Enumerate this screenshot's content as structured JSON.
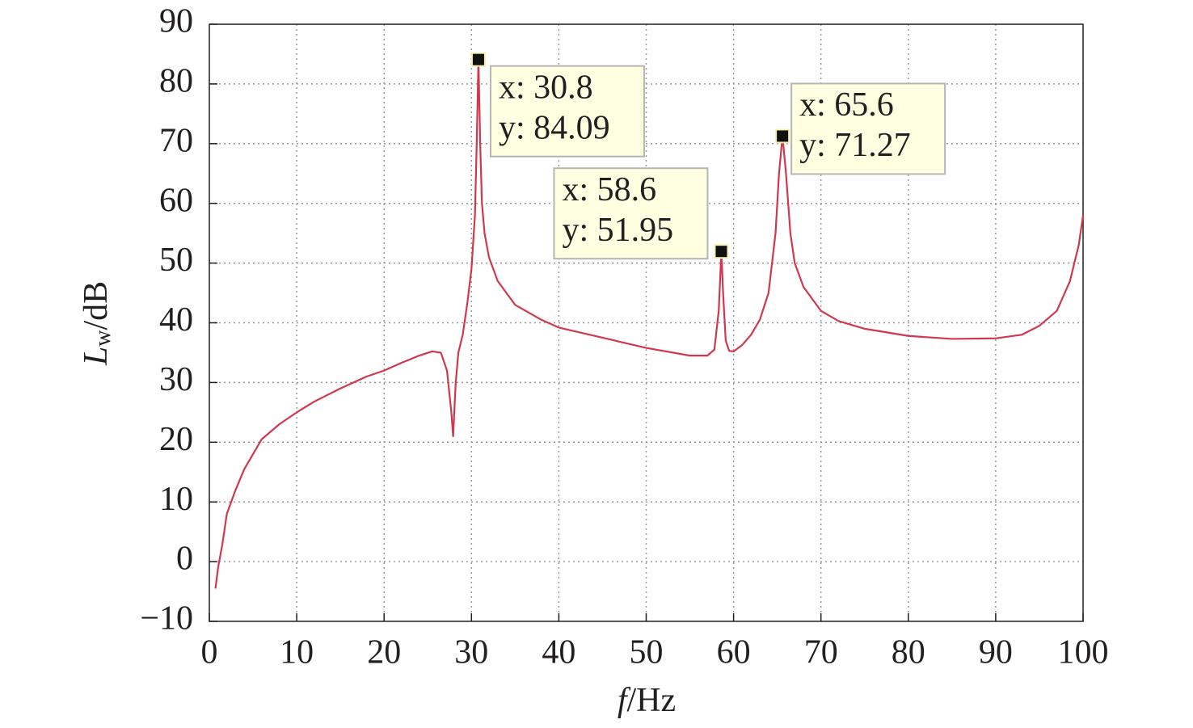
{
  "chart_data": {
    "type": "line",
    "xlabel": {
      "symbol": "f",
      "unit": "/Hz"
    },
    "ylabel": {
      "symbol": "L",
      "subscript": "w",
      "unit": "/dB"
    },
    "xlim": [
      0,
      100
    ],
    "xticks": [
      0,
      10,
      20,
      30,
      40,
      50,
      60,
      70,
      80,
      90,
      100
    ],
    "ylim": [
      -10,
      90
    ],
    "yticks": [
      {
        "value": -10,
        "label": "−10"
      },
      0,
      10,
      20,
      30,
      40,
      50,
      60,
      70,
      80,
      90
    ],
    "grid": true,
    "series": [
      {
        "color": "#d0384f",
        "x": [
          0.7,
          1,
          1.5,
          2,
          3,
          4,
          5,
          6,
          8,
          10,
          12,
          15,
          18,
          20,
          22,
          24,
          25.5,
          26.5,
          27.2,
          27.7,
          27.9,
          28.2,
          28.5,
          29,
          29.5,
          30,
          30.4,
          30.6,
          30.8,
          31,
          31.2,
          31.5,
          32,
          33,
          35,
          38,
          40,
          45,
          50,
          55,
          57,
          57.8,
          58.3,
          58.6,
          58.8,
          59.1,
          59.5,
          60,
          61,
          62,
          63,
          64,
          64.8,
          65.2,
          65.6,
          66,
          66.5,
          67,
          68,
          70,
          72,
          75,
          80,
          85,
          90,
          93,
          95,
          97,
          98.5,
          99.5,
          100
        ],
        "values": [
          -4.5,
          -1,
          3,
          8,
          12,
          15.5,
          18,
          20.5,
          23,
          25,
          26.8,
          29,
          31,
          32,
          33.3,
          34.5,
          35.2,
          35,
          32,
          25,
          21,
          30,
          35,
          38,
          43,
          49,
          58,
          70,
          84.09,
          70,
          60,
          55,
          51,
          47,
          43,
          40.5,
          39.2,
          37.5,
          35.8,
          34.5,
          34.5,
          35.5,
          42,
          51.95,
          45,
          37,
          35.3,
          35.2,
          36.3,
          38,
          40.5,
          45,
          55,
          65,
          71.27,
          65,
          55,
          50,
          46,
          42,
          40.3,
          39,
          37.8,
          37.3,
          37.4,
          38,
          39.5,
          42,
          47,
          53,
          58
        ]
      }
    ],
    "annotations": [
      {
        "x": 30.8,
        "y": 84.09,
        "labels": [
          "x: 30.8",
          "y: 84.09"
        ]
      },
      {
        "x": 58.6,
        "y": 51.95,
        "labels": [
          "x: 58.6",
          "y: 51.95"
        ]
      },
      {
        "x": 65.6,
        "y": 71.27,
        "labels": [
          "x: 65.6",
          "y: 71.27"
        ]
      }
    ]
  }
}
